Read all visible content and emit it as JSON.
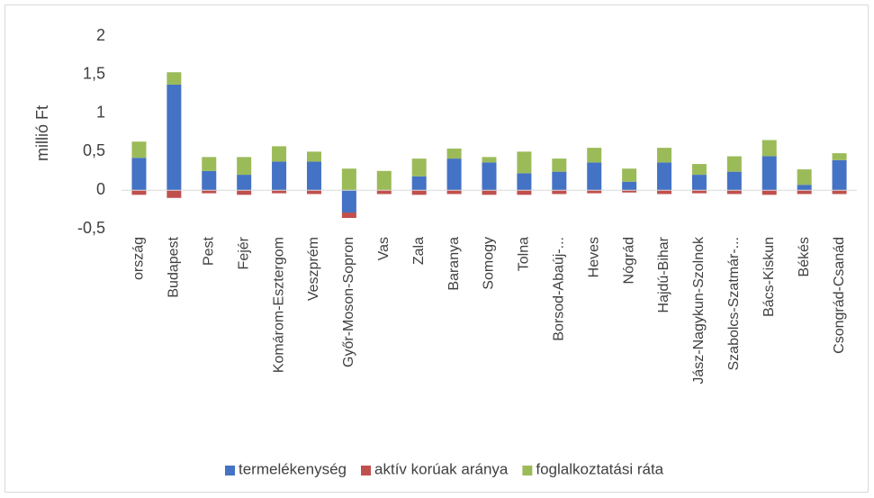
{
  "chart_data": {
    "type": "stacked-bar",
    "y_label": "millió Ft",
    "categories": [
      "ország",
      "Budapest",
      "Pest",
      "Fejér",
      "Komárom-Esztergom",
      "Veszprém",
      "Győr-Moson-Sopron",
      "Vas",
      "Zala",
      "Baranya",
      "Somogy",
      "Tolna",
      "Borsod-Abaúj-...",
      "Heves",
      "Nógrád",
      "Hajdú-Bihar",
      "Jász-Nagykun-Szolnok",
      "Szabolcs-Szatmár-...",
      "Bács-Kiskun",
      "Békés",
      "Csongrád-Csanád"
    ],
    "series": [
      {
        "name": "termelékenység",
        "color": "#4472c4",
        "values": [
          0.42,
          1.37,
          0.25,
          0.2,
          0.37,
          0.37,
          -0.29,
          0.0,
          0.18,
          0.41,
          0.36,
          0.22,
          0.24,
          0.36,
          0.11,
          0.36,
          0.2,
          0.24,
          0.44,
          0.07,
          0.39
        ]
      },
      {
        "name": "aktív korúak aránya",
        "color": "#c0504d",
        "values": [
          -0.06,
          -0.1,
          -0.04,
          -0.06,
          -0.04,
          -0.05,
          -0.07,
          -0.05,
          -0.06,
          -0.05,
          -0.06,
          -0.06,
          -0.05,
          -0.04,
          -0.03,
          -0.05,
          -0.04,
          -0.05,
          -0.06,
          -0.05,
          -0.05
        ]
      },
      {
        "name": "foglalkoztatási ráta",
        "color": "#9bbb59",
        "values": [
          0.21,
          0.16,
          0.18,
          0.23,
          0.2,
          0.13,
          0.28,
          0.25,
          0.23,
          0.13,
          0.07,
          0.28,
          0.17,
          0.19,
          0.17,
          0.19,
          0.14,
          0.2,
          0.21,
          0.2,
          0.09
        ]
      }
    ],
    "ylim": [
      -0.5,
      2
    ],
    "yticks": [
      {
        "value": -0.5,
        "label": "-0,5"
      },
      0,
      {
        "value": 0.5,
        "label": "0,5"
      },
      1,
      {
        "value": 1.5,
        "label": "1,5"
      },
      2
    ],
    "legend": "bottom"
  }
}
